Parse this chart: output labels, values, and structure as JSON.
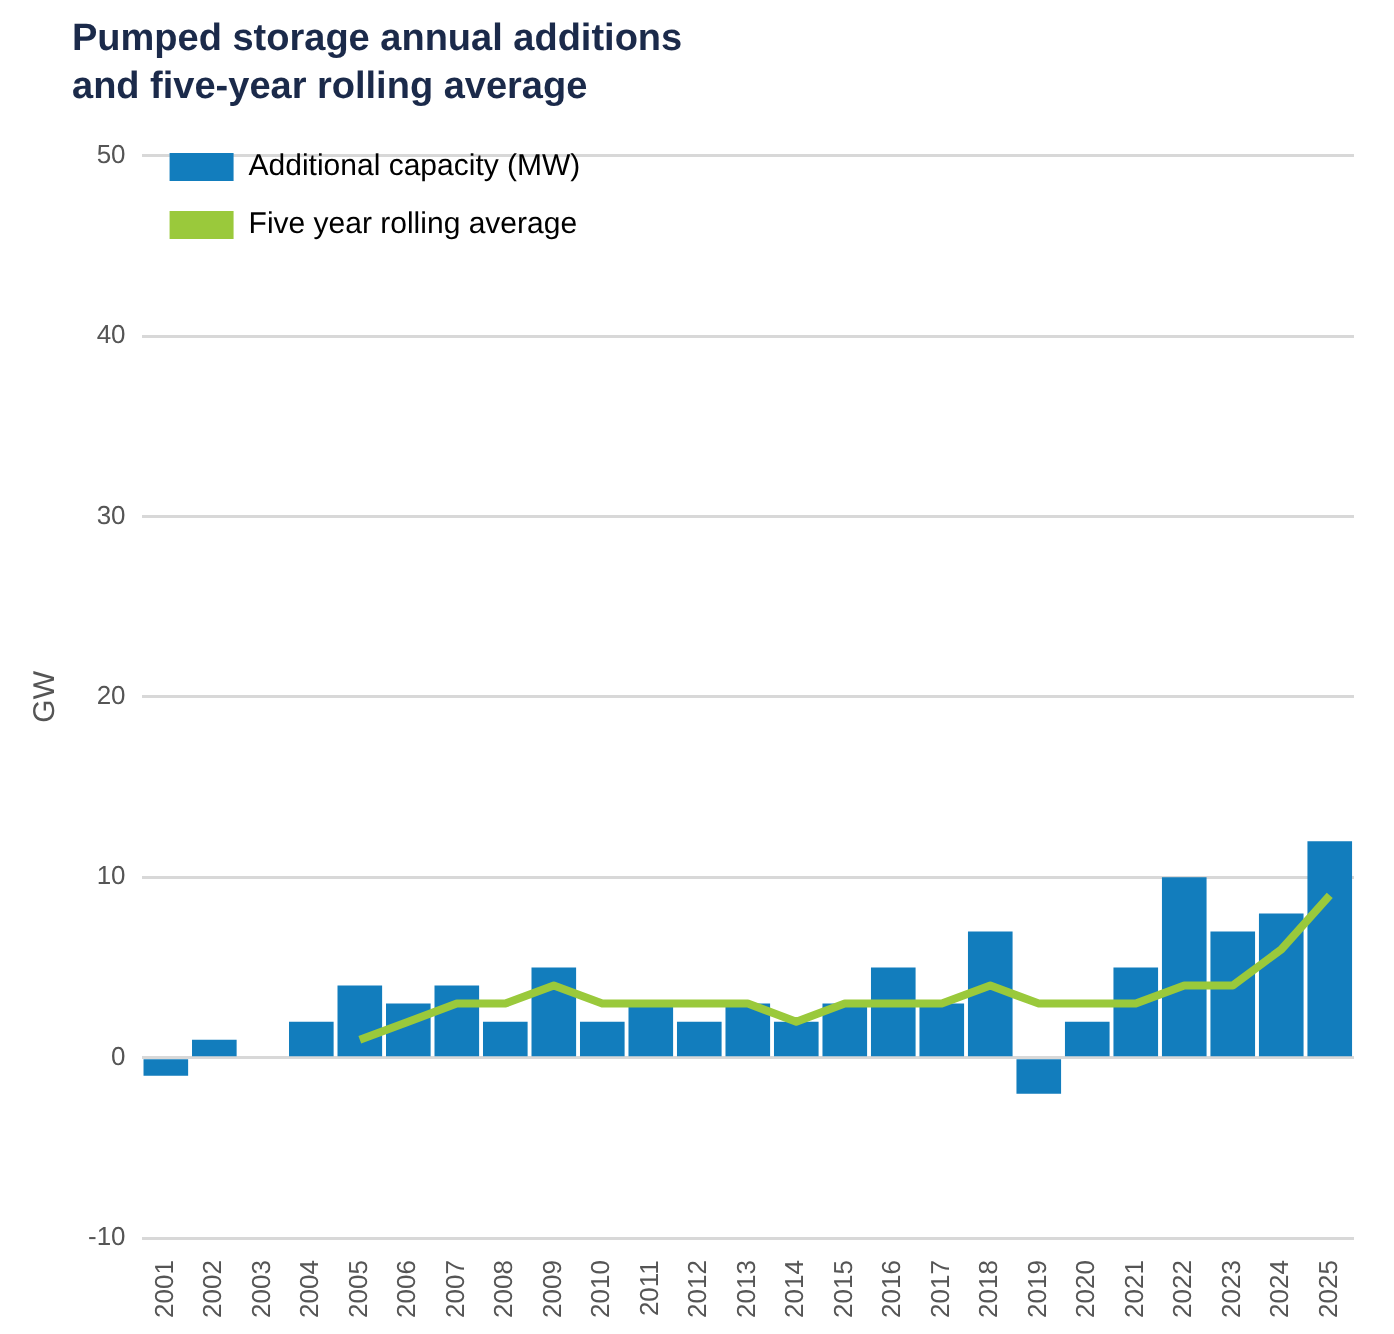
{
  "chart_data": {
    "type": "bar",
    "title": "Pumped storage annual additions\nand five-year rolling average",
    "ylabel": "GW",
    "categories": [
      "2001",
      "2002",
      "2003",
      "2004",
      "2005",
      "2006",
      "2007",
      "2008",
      "2009",
      "2010",
      "2011",
      "2012",
      "2013",
      "2014",
      "2015",
      "2016",
      "2017",
      "2018",
      "2019",
      "2020",
      "2021",
      "2022",
      "2023",
      "2024",
      "2025"
    ],
    "series": [
      {
        "name": "Additional capacity (MW)",
        "color": "#127dbd",
        "values": [
          -1,
          1,
          0,
          2,
          4,
          3,
          4,
          2,
          5,
          2,
          3,
          2,
          3,
          2,
          3,
          5,
          3,
          7,
          -2,
          2,
          5,
          10,
          7,
          8,
          12
        ]
      },
      {
        "name": "Five year rolling average",
        "type": "line",
        "color": "#9ac93b",
        "values": [
          null,
          null,
          null,
          null,
          1,
          2,
          3,
          3,
          4,
          3,
          3,
          3,
          3,
          2,
          3,
          3,
          3,
          4,
          3,
          3,
          3,
          4,
          4,
          6,
          9
        ]
      }
    ],
    "ylim": [
      -10,
      50
    ],
    "yticks": [
      -10,
      0,
      10,
      20,
      30,
      40,
      50
    ],
    "grid": "y",
    "legend": "top left",
    "marker": "none"
  }
}
